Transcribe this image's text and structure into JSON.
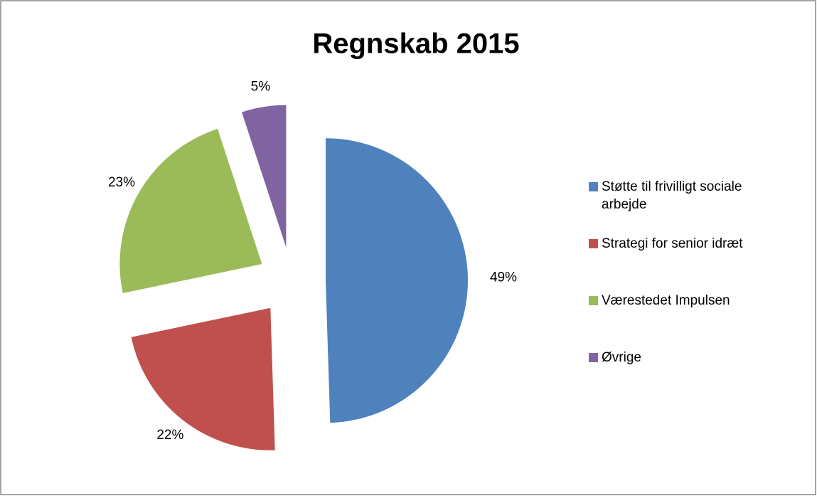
{
  "chart_data": {
    "type": "pie",
    "title": "Regnskab 2015",
    "categories": [
      "Støtte til frivilligt sociale arbejde",
      "Strategi for senior idræt",
      "Værestedet Impulsen",
      "Øvrige"
    ],
    "values": [
      49,
      22,
      23,
      5
    ],
    "value_labels": [
      "49%",
      "22%",
      "23%",
      "5%"
    ],
    "colors": [
      "#4f81bd",
      "#c0504d",
      "#9bbb59",
      "#8064a2"
    ],
    "exploded": true,
    "legend": "right"
  }
}
